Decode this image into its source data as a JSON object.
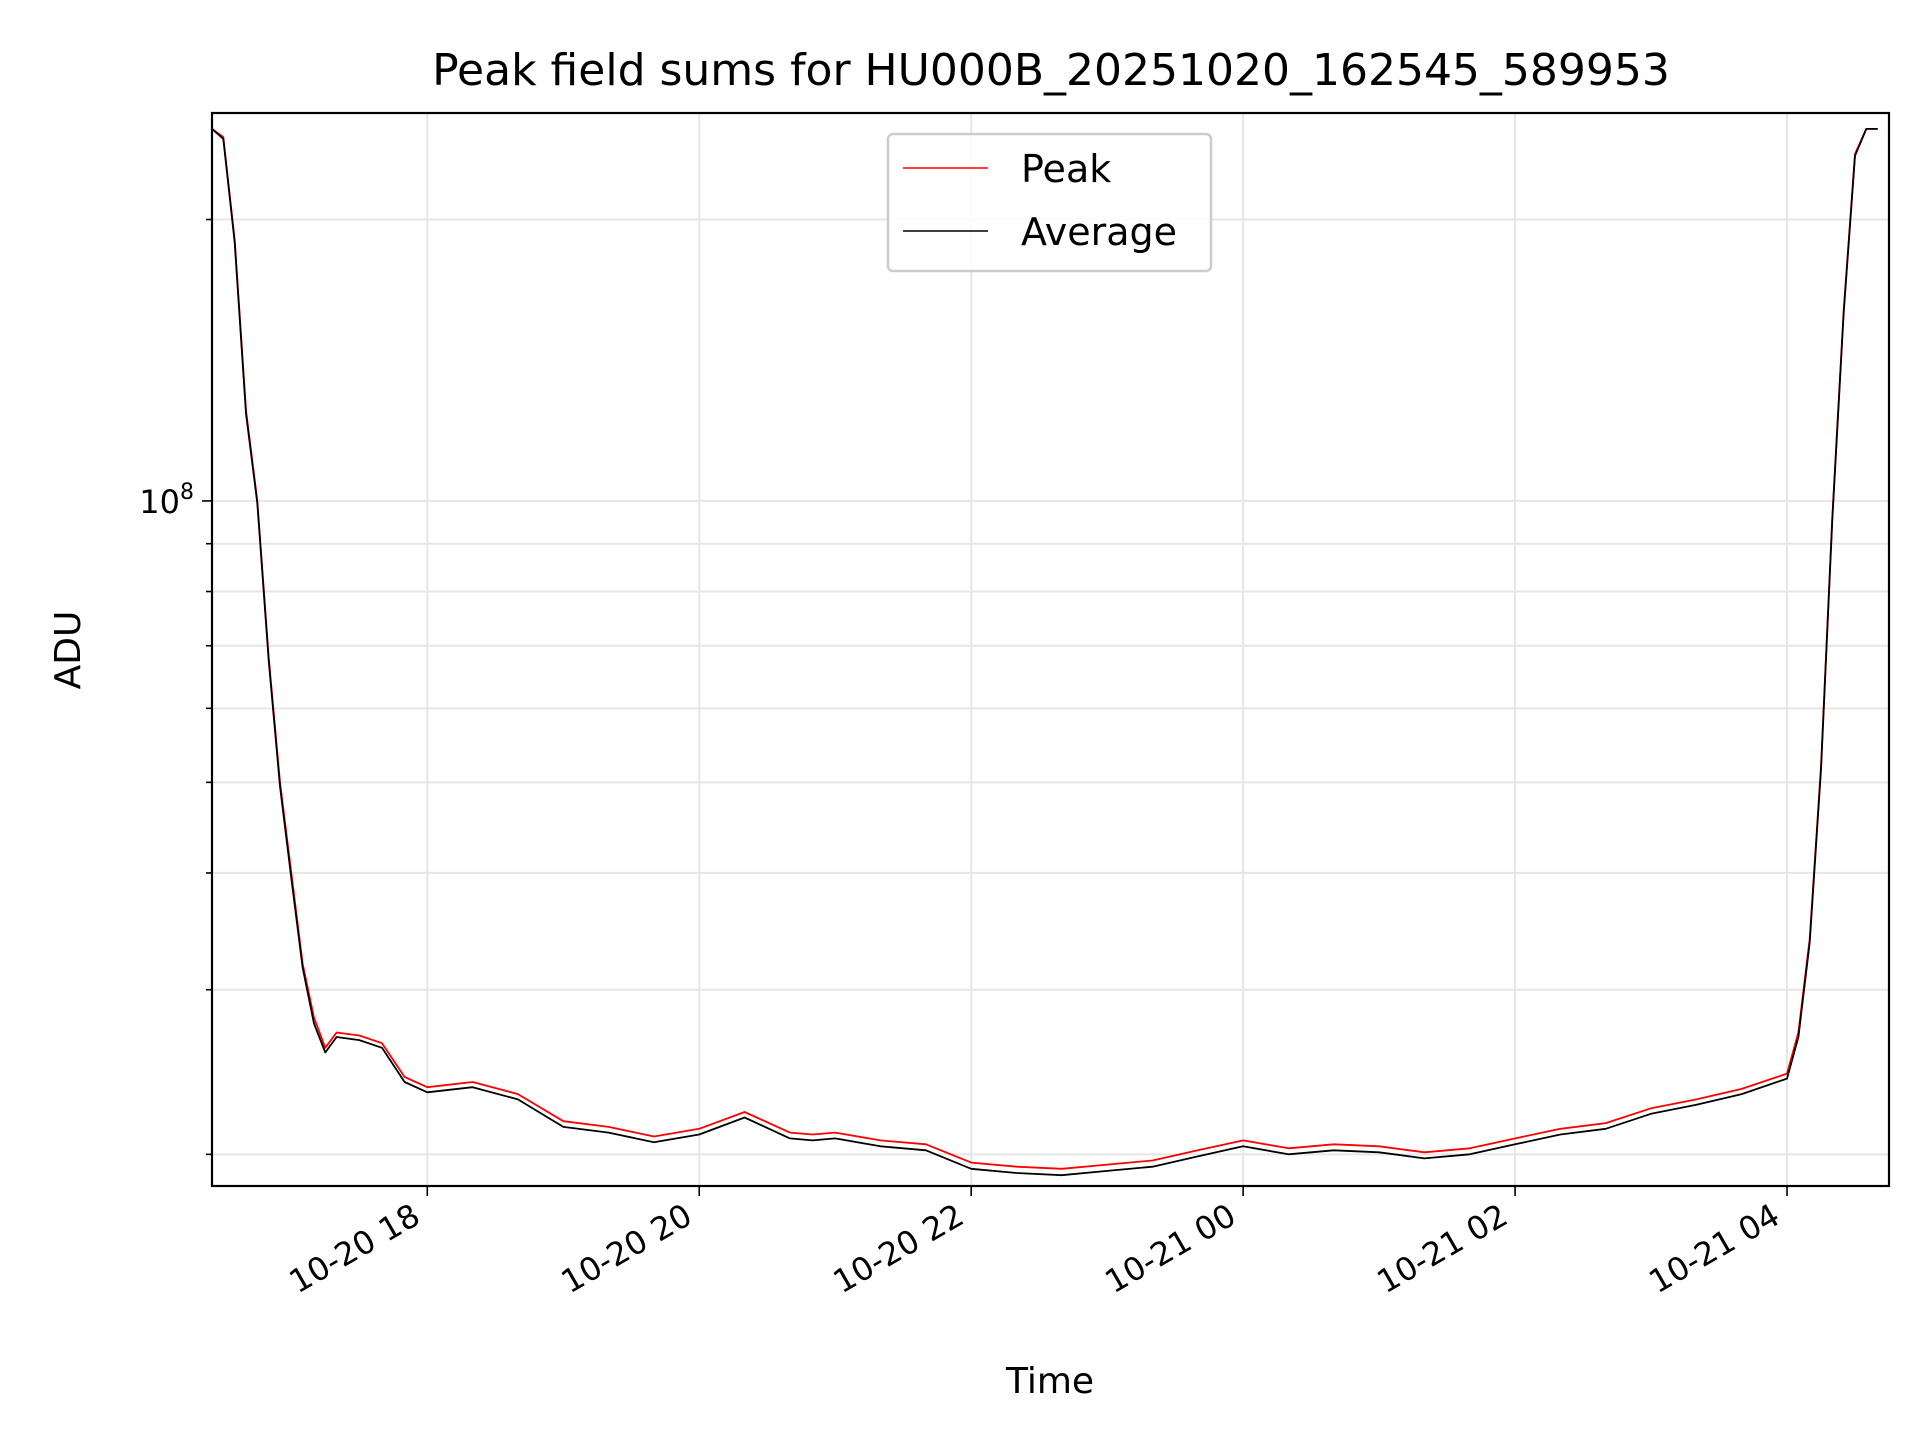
{
  "chart_data": {
    "type": "line",
    "title": "Peak field sums for HU000B_20251020_162545_589953",
    "xlabel": "Time",
    "ylabel": "ADU",
    "y_scale": "log",
    "ylim": [
      18500000,
      260000000
    ],
    "xlim": [
      "2025-10-20 16:25",
      "2025-10-21 04:45"
    ],
    "x_ticks": [
      {
        "value": "2025-10-20 18:00",
        "label": "10-20 18"
      },
      {
        "value": "2025-10-20 20:00",
        "label": "10-20 20"
      },
      {
        "value": "2025-10-20 22:00",
        "label": "10-20 22"
      },
      {
        "value": "2025-10-21 00:00",
        "label": "10-21 00"
      },
      {
        "value": "2025-10-21 02:00",
        "label": "10-21 02"
      },
      {
        "value": "2025-10-21 04:00",
        "label": "10-21 04"
      }
    ],
    "y_ticks": [
      {
        "value": 100000000,
        "label_base": "10",
        "label_exp": "8"
      }
    ],
    "grid": true,
    "legend": "top-center",
    "series": [
      {
        "name": "Peak",
        "color": "#ff0000",
        "x": [
          "2025-10-20 16:25",
          "2025-10-20 16:30",
          "2025-10-20 16:35",
          "2025-10-20 16:40",
          "2025-10-20 16:45",
          "2025-10-20 16:50",
          "2025-10-20 16:55",
          "2025-10-20 17:00",
          "2025-10-20 17:05",
          "2025-10-20 17:10",
          "2025-10-20 17:15",
          "2025-10-20 17:20",
          "2025-10-20 17:30",
          "2025-10-20 17:40",
          "2025-10-20 17:50",
          "2025-10-20 18:00",
          "2025-10-20 18:20",
          "2025-10-20 18:40",
          "2025-10-20 19:00",
          "2025-10-20 19:20",
          "2025-10-20 19:40",
          "2025-10-20 20:00",
          "2025-10-20 20:20",
          "2025-10-20 20:40",
          "2025-10-20 20:50",
          "2025-10-20 21:00",
          "2025-10-20 21:20",
          "2025-10-20 21:40",
          "2025-10-20 22:00",
          "2025-10-20 22:20",
          "2025-10-20 22:40",
          "2025-10-20 23:00",
          "2025-10-20 23:20",
          "2025-10-20 23:40",
          "2025-10-21 00:00",
          "2025-10-21 00:20",
          "2025-10-21 00:40",
          "2025-10-21 01:00",
          "2025-10-21 01:20",
          "2025-10-21 01:40",
          "2025-10-21 02:00",
          "2025-10-21 02:20",
          "2025-10-21 02:40",
          "2025-10-21 03:00",
          "2025-10-21 03:20",
          "2025-10-21 03:40",
          "2025-10-21 04:00",
          "2025-10-21 04:05",
          "2025-10-21 04:10",
          "2025-10-21 04:15",
          "2025-10-21 04:20",
          "2025-10-21 04:25",
          "2025-10-21 04:30",
          "2025-10-21 04:35",
          "2025-10-21 04:40"
        ],
        "y": [
          250000000,
          245000000,
          190000000,
          125000000,
          100000000,
          68000000,
          50000000,
          40000000,
          32000000,
          28000000,
          26000000,
          27000000,
          26800000,
          26300000,
          24200000,
          23600000,
          23900000,
          23200000,
          21700000,
          21400000,
          20900000,
          21300000,
          22200000,
          21100000,
          21000000,
          21100000,
          20700000,
          20500000,
          19600000,
          19400000,
          19300000,
          19500000,
          19700000,
          20200000,
          20700000,
          20300000,
          20500000,
          20400000,
          20100000,
          20300000,
          20800000,
          21300000,
          21600000,
          22400000,
          22900000,
          23500000,
          24400000,
          27000000,
          34000000,
          52000000,
          96000000,
          160000000,
          235000000,
          250000000,
          250000000
        ]
      },
      {
        "name": "Average",
        "color": "#000000",
        "x": [
          "2025-10-20 16:25",
          "2025-10-20 16:30",
          "2025-10-20 16:35",
          "2025-10-20 16:40",
          "2025-10-20 16:45",
          "2025-10-20 16:50",
          "2025-10-20 16:55",
          "2025-10-20 17:00",
          "2025-10-20 17:05",
          "2025-10-20 17:10",
          "2025-10-20 17:15",
          "2025-10-20 17:20",
          "2025-10-20 17:30",
          "2025-10-20 17:40",
          "2025-10-20 17:50",
          "2025-10-20 18:00",
          "2025-10-20 18:20",
          "2025-10-20 18:40",
          "2025-10-20 19:00",
          "2025-10-20 19:20",
          "2025-10-20 19:40",
          "2025-10-20 20:00",
          "2025-10-20 20:20",
          "2025-10-20 20:40",
          "2025-10-20 20:50",
          "2025-10-20 21:00",
          "2025-10-20 21:20",
          "2025-10-20 21:40",
          "2025-10-20 22:00",
          "2025-10-20 22:20",
          "2025-10-20 22:40",
          "2025-10-20 23:00",
          "2025-10-20 23:20",
          "2025-10-20 23:40",
          "2025-10-21 00:00",
          "2025-10-21 00:20",
          "2025-10-21 00:40",
          "2025-10-21 01:00",
          "2025-10-21 01:20",
          "2025-10-21 01:40",
          "2025-10-21 02:00",
          "2025-10-21 02:20",
          "2025-10-21 02:40",
          "2025-10-21 03:00",
          "2025-10-21 03:20",
          "2025-10-21 03:40",
          "2025-10-21 04:00",
          "2025-10-21 04:05",
          "2025-10-21 04:10",
          "2025-10-21 04:15",
          "2025-10-21 04:20",
          "2025-10-21 04:25",
          "2025-10-21 04:30",
          "2025-10-21 04:35",
          "2025-10-21 04:40"
        ],
        "y": [
          250000000,
          244000000,
          189000000,
          124000000,
          99500000,
          67500000,
          49500000,
          39500000,
          31700000,
          27600000,
          25700000,
          26700000,
          26500000,
          26000000,
          23900000,
          23300000,
          23600000,
          22900000,
          21400000,
          21100000,
          20600000,
          21000000,
          21900000,
          20800000,
          20700000,
          20800000,
          20400000,
          20200000,
          19300000,
          19100000,
          19000000,
          19200000,
          19400000,
          19900000,
          20400000,
          20000000,
          20200000,
          20100000,
          19800000,
          20000000,
          20500000,
          21000000,
          21300000,
          22100000,
          22600000,
          23200000,
          24100000,
          26700000,
          33700000,
          51600000,
          95500000,
          159000000,
          234000000,
          250000000,
          250000000
        ]
      }
    ]
  }
}
